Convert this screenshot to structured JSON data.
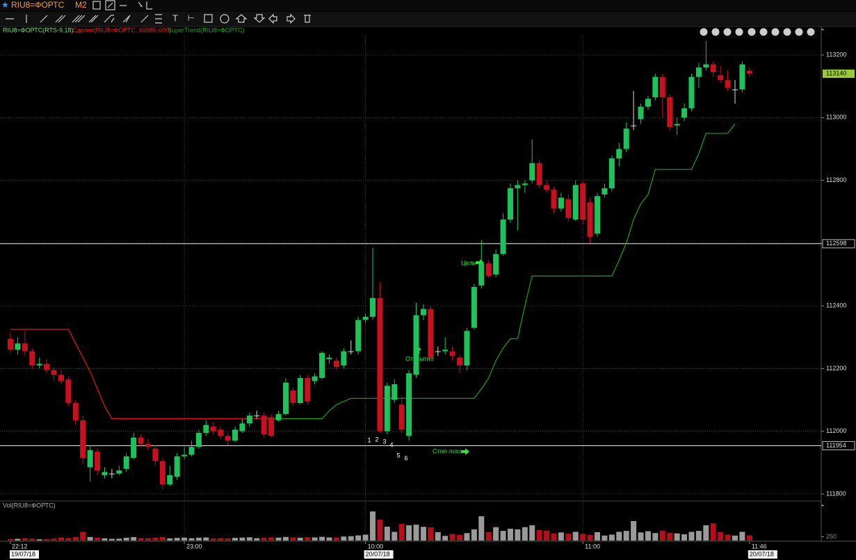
{
  "chart_data": {
    "type": "candlestick",
    "instrument": "RIU8=ФОРТС",
    "timeframe": "M2",
    "legend": {
      "main": "RIU8=ФОРТС(RTS-9.18)",
      "deals": "Сделки(RIU8=ФОРТС, 66986-000)",
      "indicator": "SuperTrend(RIU8=ФОРТС)"
    },
    "volume_title": "Vol(RIU8=ФОРТС)",
    "annotations": {
      "target": "Цель",
      "entry": "Открытие",
      "stop": "Стоп-лосс"
    },
    "trade_numbers": [
      "1",
      "2",
      "3",
      "4",
      "5",
      "6"
    ],
    "categories": [
      "22:12",
      null,
      null,
      null,
      null,
      null,
      null,
      null,
      null,
      null,
      null,
      null,
      null,
      null,
      null,
      null,
      null,
      null,
      null,
      null,
      null,
      null,
      null,
      null,
      "23:00",
      null,
      null,
      null,
      null,
      null,
      null,
      null,
      null,
      null,
      null,
      null,
      null,
      null,
      null,
      null,
      null,
      null,
      null,
      null,
      null,
      null,
      null,
      null,
      null,
      "10:00",
      null,
      null,
      null,
      null,
      null,
      null,
      null,
      null,
      null,
      null,
      null,
      null,
      null,
      null,
      null,
      null,
      null,
      null,
      null,
      null,
      null,
      null,
      null,
      null,
      null,
      null,
      null,
      null,
      null,
      "11:00",
      null,
      null,
      null,
      null,
      null,
      null,
      null,
      null,
      null,
      null,
      null,
      null,
      null,
      null,
      null,
      null,
      null,
      null,
      null,
      null,
      null,
      null,
      "11:46"
    ],
    "dates": [
      "19/07/18",
      null,
      null,
      null,
      null,
      null,
      null,
      null,
      null,
      null,
      null,
      null,
      null,
      null,
      null,
      null,
      null,
      null,
      null,
      null,
      null,
      null,
      null,
      null,
      null,
      null,
      null,
      null,
      null,
      null,
      null,
      null,
      null,
      null,
      null,
      null,
      null,
      null,
      null,
      null,
      null,
      null,
      null,
      null,
      null,
      null,
      null,
      null,
      null,
      "20/07/18",
      null,
      null,
      null,
      null,
      null,
      null,
      null,
      null,
      null,
      null,
      null,
      null,
      null,
      null,
      null,
      null,
      null,
      null,
      null,
      null,
      null,
      null,
      null,
      null,
      null,
      null,
      null,
      null,
      null,
      null,
      null,
      null,
      null,
      null,
      null,
      null,
      null,
      null,
      null,
      null,
      null,
      null,
      null,
      null,
      null,
      null,
      null,
      null,
      null,
      null,
      null,
      null,
      "20/07/18"
    ],
    "open": [
      112295,
      112260,
      112280,
      112255,
      112210,
      112215,
      112195,
      112180,
      112165,
      112090,
      112035,
      111885,
      111935,
      111860,
      111865,
      111865,
      111880,
      111915,
      111980,
      111960,
      111945,
      111905,
      111830,
      111855,
      111920,
      111925,
      111950,
      111995,
      112015,
      112005,
      111985,
      111970,
      112000,
      112025,
      112050,
      112050,
      112045,
      112035,
      112055,
      112130,
      112090,
      112170,
      112160,
      112170,
      112230,
      112225,
      112210,
      112255,
      112255,
      112355,
      112365,
      112425,
      112000,
      112100,
      112085,
      111985,
      112180,
      112370,
      112390,
      112255,
      112255,
      112255,
      112235,
      112210,
      112330,
      112465,
      112535,
      112500,
      112565,
      112675,
      112775,
      112785,
      112800,
      112855,
      112785,
      112770,
      112710,
      112740,
      112675,
      112790,
      112730,
      112630,
      112755,
      112775,
      112870,
      112900,
      112975,
      112995,
      113035,
      113065,
      113130,
      113065,
      112975,
      113000,
      113030,
      113130,
      113160,
      113170,
      113135,
      113120,
      113090,
      113090,
      113150
    ],
    "high": [
      112315,
      112300,
      112320,
      112265,
      112235,
      112230,
      112205,
      112195,
      112175,
      112100,
      112050,
      111955,
      111945,
      111885,
      111880,
      111890,
      111930,
      111995,
      111990,
      111975,
      111955,
      111915,
      111890,
      111930,
      111950,
      111970,
      112005,
      112035,
      112030,
      112015,
      111995,
      112015,
      112040,
      112060,
      112065,
      112060,
      112055,
      112065,
      112170,
      112140,
      112180,
      112180,
      112185,
      112255,
      112245,
      112235,
      112265,
      112290,
      112365,
      112375,
      112585,
      112475,
      112155,
      112165,
      112110,
      112195,
      112410,
      112405,
      112400,
      112270,
      112300,
      112270,
      112245,
      112330,
      112470,
      112610,
      112545,
      112580,
      112695,
      112790,
      112800,
      112800,
      112930,
      112865,
      112800,
      112780,
      112760,
      112755,
      112800,
      112800,
      112745,
      112760,
      112790,
      112880,
      112920,
      112985,
      113085,
      113045,
      113070,
      113140,
      113140,
      113075,
      113000,
      113045,
      113140,
      113175,
      113245,
      113180,
      113165,
      113150,
      113120,
      113180,
      113160
    ],
    "low": [
      112250,
      112245,
      112240,
      112200,
      112200,
      112185,
      112160,
      112150,
      112080,
      112020,
      111895,
      111840,
      111860,
      111850,
      111850,
      111860,
      111870,
      111910,
      111950,
      111940,
      111890,
      111815,
      111825,
      111845,
      111910,
      111920,
      111945,
      111985,
      111990,
      111975,
      111955,
      111965,
      111995,
      112015,
      112040,
      111980,
      111980,
      112030,
      112050,
      112080,
      112085,
      112085,
      112150,
      112165,
      112215,
      112195,
      112200,
      112245,
      112245,
      112345,
      112355,
      111995,
      111990,
      112090,
      111995,
      111970,
      112170,
      112355,
      112225,
      112240,
      112245,
      112225,
      112185,
      112195,
      112325,
      112455,
      112490,
      112490,
      112560,
      112665,
      112640,
      112760,
      112790,
      112775,
      112760,
      112695,
      112700,
      112670,
      112670,
      112660,
      112600,
      112620,
      112745,
      112765,
      112845,
      112890,
      112960,
      112980,
      113025,
      113055,
      113000,
      112960,
      112945,
      112990,
      113020,
      113095,
      113150,
      113130,
      113110,
      113085,
      113045,
      113080,
      113130
    ],
    "close": [
      112260,
      112280,
      112255,
      112210,
      112215,
      112195,
      112180,
      112160,
      112090,
      112035,
      111915,
      111940,
      111875,
      111870,
      111865,
      111875,
      111920,
      111980,
      111960,
      111950,
      111905,
      111830,
      111860,
      111920,
      111925,
      111950,
      111995,
      112020,
      112000,
      111985,
      111970,
      112005,
      112025,
      112050,
      112050,
      111990,
      111985,
      112055,
      112155,
      112090,
      112170,
      112095,
      112175,
      112250,
      112235,
      112205,
      112255,
      112255,
      112355,
      112365,
      112425,
      112000,
      112145,
      112150,
      112005,
      112185,
      112370,
      112390,
      112235,
      112255,
      112260,
      112240,
      112210,
      112320,
      112460,
      112535,
      112495,
      112565,
      112675,
      112775,
      112785,
      112790,
      112855,
      112785,
      112770,
      112710,
      112745,
      112680,
      112785,
      112675,
      112620,
      112750,
      112775,
      112870,
      112900,
      112965,
      112975,
      113035,
      113060,
      113130,
      113065,
      112970,
      112980,
      113030,
      113130,
      113160,
      113170,
      113145,
      113120,
      113095,
      113090,
      113170,
      113140
    ],
    "volume": [
      90,
      110,
      150,
      120,
      80,
      100,
      130,
      200,
      160,
      230,
      560,
      230,
      180,
      140,
      110,
      120,
      180,
      220,
      160,
      150,
      190,
      230,
      140,
      170,
      190,
      150,
      180,
      200,
      130,
      150,
      140,
      170,
      190,
      210,
      150,
      170,
      200,
      190,
      230,
      200,
      180,
      210,
      200,
      240,
      200,
      190,
      260,
      280,
      330,
      380,
      1870,
      1340,
      890,
      560,
      1070,
      980,
      1020,
      880,
      850,
      540,
      300,
      420,
      360,
      480,
      720,
      1560,
      540,
      860,
      620,
      760,
      720,
      860,
      980,
      680,
      640,
      460,
      520,
      440,
      560,
      430,
      360,
      540,
      320,
      380,
      560,
      620,
      1250,
      520,
      600,
      480,
      640,
      500,
      460,
      400,
      560,
      620,
      980,
      1100,
      540,
      380,
      320,
      560,
      330
    ],
    "up_color": "#1fc25a",
    "down_color": "#c8101e",
    "volume_up_color": "#9a9a9a",
    "volume_down_color": "#b4101c",
    "indicator_series": [
      {
        "color": "#e01818",
        "values": [
          112325,
          112325,
          112325,
          112325,
          112325,
          112325,
          112325,
          112325,
          112325,
          112280,
          112235,
          112190,
          112135,
          112080,
          112040,
          112040,
          112040,
          112040,
          112040,
          112040,
          112040,
          112040,
          112040,
          112040,
          112040,
          112040,
          112040,
          112040,
          112040,
          112040,
          112040,
          112040,
          112040,
          112040,
          112040,
          112040,
          null,
          null,
          null,
          null,
          null,
          null,
          null,
          null,
          null,
          null,
          null,
          null,
          null,
          null,
          null,
          null,
          null,
          null,
          null,
          null,
          null,
          null,
          null,
          null,
          null,
          null,
          null,
          null,
          null,
          null,
          null,
          null,
          null,
          null,
          null,
          null,
          null,
          null,
          null,
          null,
          null,
          null,
          null,
          null,
          null,
          null,
          null,
          null,
          null,
          null,
          null,
          null,
          null,
          null,
          null,
          null,
          null,
          null,
          null,
          null,
          null,
          null,
          null,
          null,
          null,
          null,
          null
        ]
      },
      {
        "color": "#1fa21f",
        "values": [
          null,
          null,
          null,
          null,
          null,
          null,
          null,
          null,
          null,
          null,
          null,
          null,
          null,
          null,
          null,
          null,
          null,
          null,
          null,
          null,
          null,
          null,
          null,
          null,
          null,
          null,
          null,
          null,
          null,
          null,
          null,
          null,
          null,
          null,
          null,
          112040,
          112040,
          112040,
          112040,
          112040,
          112040,
          112040,
          112040,
          112040,
          112065,
          112085,
          112095,
          112105,
          112105,
          112105,
          112105,
          112105,
          112105,
          112105,
          112105,
          112105,
          112105,
          112105,
          112105,
          112105,
          112105,
          112105,
          112105,
          112105,
          112105,
          112135,
          112170,
          112225,
          112265,
          112295,
          112295,
          112400,
          112495,
          112495,
          112495,
          112495,
          112495,
          112495,
          112495,
          112495,
          112495,
          112495,
          112495,
          112495,
          112545,
          112600,
          112675,
          112725,
          112755,
          112835,
          112835,
          112835,
          112835,
          112835,
          112835,
          112885,
          112950,
          112950,
          112950,
          112950,
          112980,
          null,
          null
        ]
      }
    ],
    "levels": [
      112598,
      111954
    ],
    "last_price": 113140,
    "last_price_color": "#9acd32",
    "ylim": [
      111780,
      113260
    ],
    "yticks": [
      111800,
      112000,
      112200,
      112400,
      112600,
      112800,
      113000,
      113200
    ],
    "volume_ylim": [
      0,
      2500
    ],
    "volume_ticks": [
      250
    ],
    "grid": true
  }
}
